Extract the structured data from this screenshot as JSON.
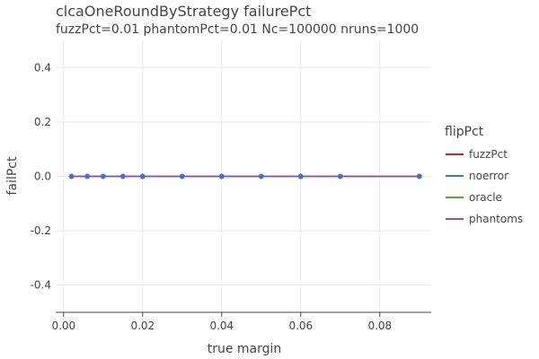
{
  "chart_data": {
    "type": "line",
    "title": "clcaOneRoundByStrategy failurePct",
    "subtitle": "fuzzPct=0.01 phantomPct=0.01 Nc=100000 nruns=1000",
    "xlabel": "true margin",
    "ylabel": "failPct",
    "xlim": [
      -0.002,
      0.093
    ],
    "ylim": [
      -0.5,
      0.5
    ],
    "xticks": [
      0.0,
      0.02,
      0.04,
      0.06,
      0.08
    ],
    "xtick_labels": [
      "0.00",
      "0.02",
      "0.04",
      "0.06",
      "0.08"
    ],
    "yticks": [
      -0.4,
      -0.2,
      0.0,
      0.2,
      0.4
    ],
    "ytick_labels": [
      "-0.4",
      "-0.2",
      "0.0",
      "0.2",
      "0.4"
    ],
    "grid": true,
    "legend": {
      "title": "flipPct",
      "placement": "right"
    },
    "x": [
      0.002,
      0.006,
      0.01,
      0.015,
      0.02,
      0.03,
      0.04,
      0.05,
      0.06,
      0.07,
      0.09
    ],
    "series": [
      {
        "name": "fuzzPct",
        "color": "#e41a1c",
        "values": [
          0,
          0,
          0,
          0,
          0,
          0,
          0,
          0,
          0,
          0,
          0
        ]
      },
      {
        "name": "noerror",
        "color": "#377eb8",
        "values": [
          0,
          0,
          0,
          0,
          0,
          0,
          0,
          0,
          0,
          0,
          0
        ]
      },
      {
        "name": "oracle",
        "color": "#4daf4a",
        "values": [
          0,
          0,
          0,
          0,
          0,
          0,
          0,
          0,
          0,
          0,
          0
        ]
      },
      {
        "name": "phantoms",
        "color": "#984ea3",
        "values": [
          0,
          0,
          0,
          0,
          0,
          0,
          0,
          0,
          0,
          0,
          0
        ]
      }
    ],
    "marker_color": "#4a6fd0"
  }
}
